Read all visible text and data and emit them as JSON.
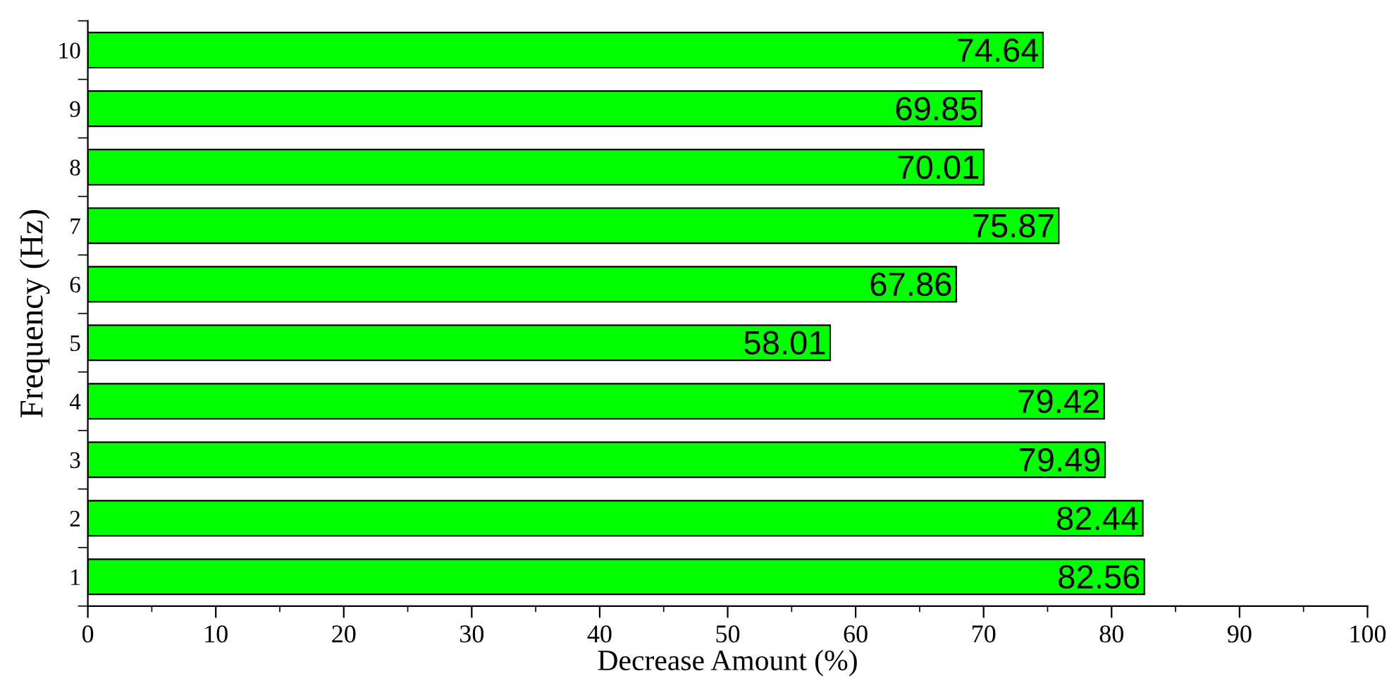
{
  "chart_data": {
    "type": "bar",
    "orientation": "horizontal",
    "xlabel": "Decrease Amount (%)",
    "ylabel": "Frequency (Hz)",
    "categories": [
      "10",
      "9",
      "8",
      "7",
      "6",
      "5",
      "4",
      "3",
      "2",
      "1"
    ],
    "values": [
      74.64,
      69.85,
      70.01,
      75.87,
      67.86,
      58.01,
      79.42,
      79.49,
      82.44,
      82.56
    ],
    "color": "#00ff00",
    "data_labels": true,
    "xlim": [
      0,
      100
    ],
    "xticks": [
      0,
      10,
      20,
      30,
      40,
      50,
      60,
      70,
      80,
      90,
      100
    ],
    "grid": false,
    "legend": false
  }
}
